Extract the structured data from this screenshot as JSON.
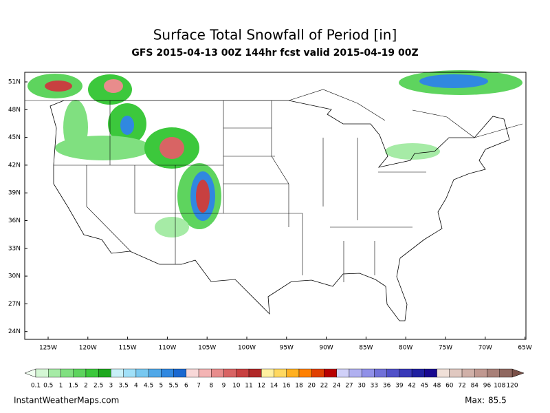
{
  "title": "Surface Total Snowfall of Period [in]",
  "subtitle": "GFS 2015-04-13 00Z 144hr fcst valid 2015-04-19 00Z",
  "lat_labels": [
    "51N",
    "48N",
    "45N",
    "42N",
    "39N",
    "36N",
    "33N",
    "30N",
    "27N",
    "24N"
  ],
  "lon_labels": [
    "125W",
    "120W",
    "115W",
    "110W",
    "105W",
    "100W",
    "95W",
    "90W",
    "85W",
    "80W",
    "75W",
    "70W",
    "65W"
  ],
  "colorbar": {
    "labels": [
      "0.1",
      "0.5",
      "1",
      "1.5",
      "2",
      "2.5",
      "3",
      "3.5",
      "4",
      "4.5",
      "5",
      "5.5",
      "6",
      "7",
      "8",
      "9",
      "10",
      "11",
      "12",
      "14",
      "16",
      "18",
      "20",
      "22",
      "24",
      "27",
      "30",
      "33",
      "36",
      "39",
      "42",
      "45",
      "48",
      "60",
      "72",
      "84",
      "96",
      "108",
      "120"
    ],
    "colors": [
      "#d4f7d4",
      "#a6eba6",
      "#80e080",
      "#5ed45e",
      "#3cc83c",
      "#1ea81e",
      "#c8f0f8",
      "#a0e0f8",
      "#78c8f0",
      "#50a8e8",
      "#3088e0",
      "#1a68d0",
      "#f8d8d8",
      "#f4b4b4",
      "#e88c8c",
      "#d86464",
      "#c84040",
      "#b02828",
      "#fff0a0",
      "#ffd860",
      "#ffb020",
      "#ff8000",
      "#e04000",
      "#b80000",
      "#d0d0f8",
      "#b0b0f0",
      "#9090e8",
      "#7070d8",
      "#5050c8",
      "#3838b8",
      "#2020a0",
      "#180890",
      "#f0e0d8",
      "#e0c8c0",
      "#d0b0a8",
      "#c09890",
      "#a88078",
      "#906860"
    ],
    "low_color": "#f0fff0",
    "high_color": "#7a5048"
  },
  "footer": "InstantWeatherMaps.com",
  "max_label": "Max:",
  "max": 85.5
}
